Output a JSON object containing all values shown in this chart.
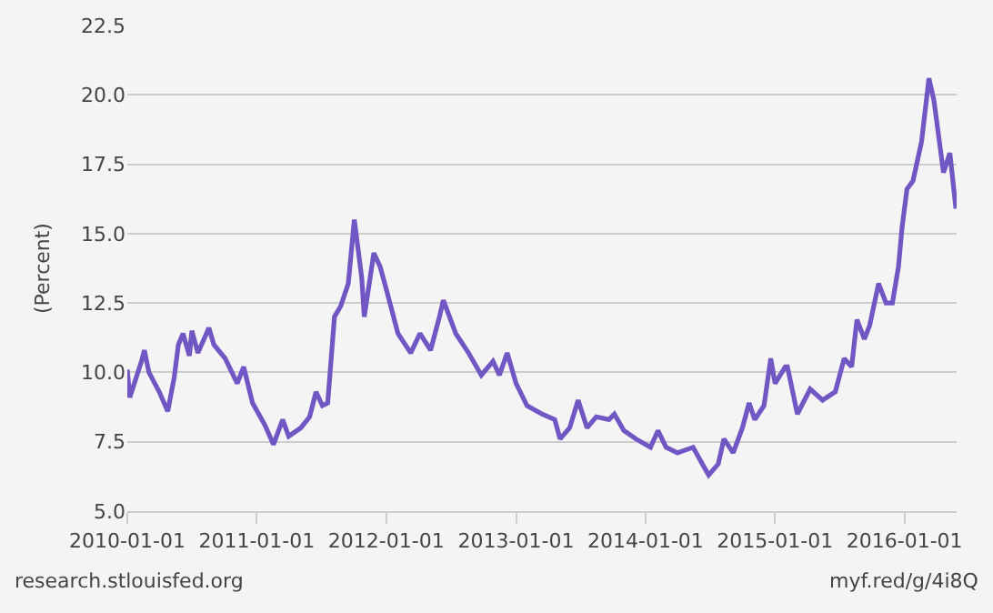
{
  "chart_data": {
    "type": "line",
    "ylabel": "(Percent)",
    "annotations": [
      "research.stlouisfed.org",
      "myf.red/g/4i8Q"
    ],
    "x": [
      "2010-01-01",
      "2010-01-08",
      "2010-02-10",
      "2010-02-18",
      "2010-03-03",
      "2010-04-01",
      "2010-04-25",
      "2010-05-13",
      "2010-05-25",
      "2010-06-07",
      "2010-06-25",
      "2010-07-02",
      "2010-07-19",
      "2010-08-19",
      "2010-09-02",
      "2010-10-04",
      "2010-11-07",
      "2010-11-25",
      "2010-12-20",
      "2011-01-24",
      "2011-02-17",
      "2011-03-15",
      "2011-04-01",
      "2011-05-05",
      "2011-05-30",
      "2011-06-17",
      "2011-07-05",
      "2011-07-20",
      "2011-08-08",
      "2011-08-26",
      "2011-09-16",
      "2011-10-03",
      "2011-10-24",
      "2011-10-31",
      "2011-11-27",
      "2011-12-15",
      "2012-01-01",
      "2012-02-03",
      "2012-03-10",
      "2012-04-05",
      "2012-05-05",
      "2012-05-30",
      "2012-06-10",
      "2012-07-15",
      "2012-08-20",
      "2012-09-25",
      "2012-10-28",
      "2012-11-15",
      "2012-12-07",
      "2013-01-01",
      "2013-02-01",
      "2013-03-15",
      "2013-04-20",
      "2013-05-05",
      "2013-06-01",
      "2013-06-25",
      "2013-07-20",
      "2013-08-15",
      "2013-09-20",
      "2013-10-05",
      "2013-11-01",
      "2013-12-05",
      "2014-01-15",
      "2014-02-05",
      "2014-02-28",
      "2014-04-01",
      "2014-05-15",
      "2014-06-10",
      "2014-06-28",
      "2014-07-25",
      "2014-08-10",
      "2014-09-05",
      "2014-10-01",
      "2014-10-20",
      "2014-11-05",
      "2014-12-01",
      "2014-12-20",
      "2015-01-01",
      "2015-01-30",
      "2015-02-05",
      "2015-03-05",
      "2015-04-10",
      "2015-05-15",
      "2015-06-20",
      "2015-07-15",
      "2015-08-05",
      "2015-08-20",
      "2015-09-10",
      "2015-09-25",
      "2015-10-20",
      "2015-11-10",
      "2015-11-28",
      "2015-12-15",
      "2015-12-25",
      "2016-01-08",
      "2016-01-25",
      "2016-02-18",
      "2016-03-10",
      "2016-03-24",
      "2016-04-20",
      "2016-05-08",
      "2016-05-25"
    ],
    "series": [
      {
        "color": "#7157c3",
        "values": [
          10.1,
          9.1,
          10.4,
          10.8,
          10.0,
          9.3,
          8.6,
          9.8,
          11.0,
          11.4,
          10.6,
          11.5,
          10.7,
          11.6,
          11.0,
          10.5,
          9.6,
          10.2,
          8.9,
          8.1,
          7.4,
          8.3,
          7.7,
          8.0,
          8.4,
          9.3,
          8.8,
          8.9,
          12.0,
          12.4,
          13.2,
          15.5,
          13.4,
          12.0,
          14.3,
          13.8,
          13.0,
          11.4,
          10.7,
          11.4,
          10.8,
          12.0,
          12.6,
          11.4,
          10.7,
          9.9,
          10.4,
          9.9,
          10.7,
          9.6,
          8.8,
          8.5,
          8.3,
          7.6,
          8.0,
          9.0,
          8.0,
          8.4,
          8.3,
          8.5,
          7.9,
          7.6,
          7.3,
          7.9,
          7.3,
          7.1,
          7.3,
          6.7,
          6.3,
          6.7,
          7.6,
          7.1,
          8.0,
          8.9,
          8.3,
          8.8,
          10.5,
          9.6,
          10.2,
          10.2,
          8.5,
          9.4,
          9.0,
          9.3,
          10.5,
          10.2,
          11.9,
          11.2,
          11.7,
          13.2,
          12.5,
          12.5,
          13.8,
          15.2,
          16.6,
          16.9,
          18.3,
          20.6,
          19.8,
          17.2,
          17.9,
          15.9
        ]
      }
    ],
    "xlim": [
      "2010-01-01",
      "2016-05-27"
    ],
    "xticks": [
      "2010-01-01",
      "2011-01-01",
      "2012-01-01",
      "2013-01-01",
      "2014-01-01",
      "2015-01-01",
      "2016-01-01"
    ],
    "ylim": [
      5,
      22.5
    ],
    "yticks": [
      {
        "value": 5,
        "label": "5.0"
      },
      {
        "value": 7.5,
        "label": "7.5"
      },
      {
        "value": 10,
        "label": "10.0"
      },
      {
        "value": 12.5,
        "label": "12.5"
      },
      {
        "value": 15,
        "label": "15.0"
      },
      {
        "value": 17.5,
        "label": "17.5"
      },
      {
        "value": 20,
        "label": "20.0"
      },
      {
        "value": 22.5,
        "label": "22.5"
      }
    ],
    "grid": "y",
    "line_style": "solid",
    "marker": "none"
  }
}
